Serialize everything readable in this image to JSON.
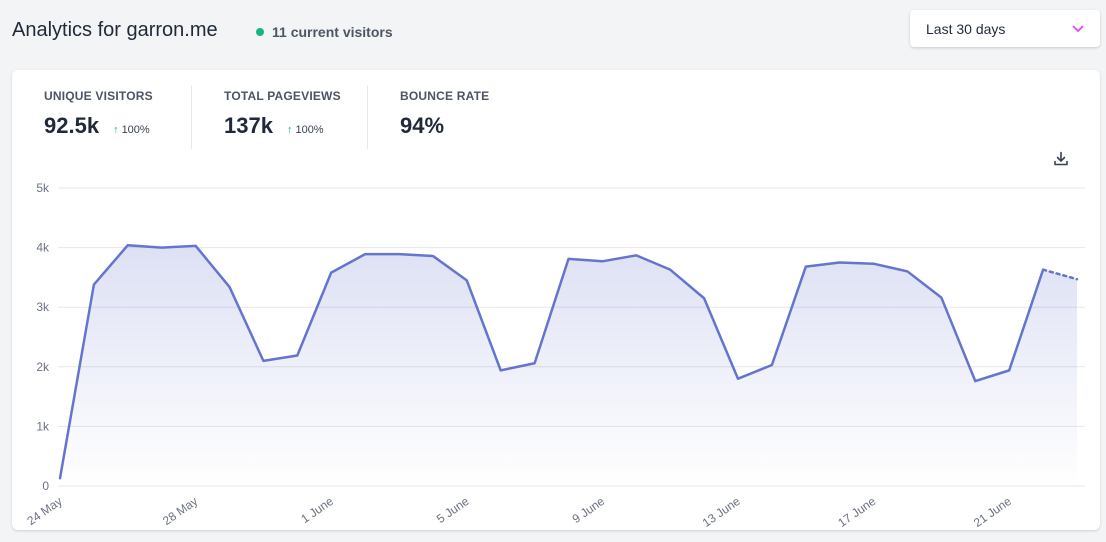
{
  "header": {
    "title": "Analytics for garron.me",
    "current_visitors": "11 current visitors",
    "status_dot_color": "#10b981"
  },
  "range_select": {
    "value": "Last 30 days",
    "icon": "chevron-down-icon",
    "icon_color": "#d946ef"
  },
  "stats": [
    {
      "label": "UNIQUE VISITORS",
      "value": "92.5k",
      "change": "100%",
      "change_icon": "arrow-up-icon"
    },
    {
      "label": "TOTAL PAGEVIEWS",
      "value": "137k",
      "change": "100%",
      "change_icon": "arrow-up-icon"
    },
    {
      "label": "BOUNCE RATE",
      "value": "94%"
    }
  ],
  "download_icon": "download-icon",
  "chart_data": {
    "type": "area",
    "line_color": "#6574cd",
    "ylim": [
      0,
      5000
    ],
    "yticks": [
      0,
      1000,
      2000,
      3000,
      4000,
      5000
    ],
    "ytick_labels": [
      "0",
      "1k",
      "2k",
      "3k",
      "4k",
      "5k"
    ],
    "x_tick_labels": [
      "24 May",
      "28 May",
      "1 June",
      "5 June",
      "9 June",
      "13 June",
      "17 June",
      "21 June"
    ],
    "x_tick_every": 4,
    "x": [
      "24 May",
      "25 May",
      "26 May",
      "27 May",
      "28 May",
      "29 May",
      "30 May",
      "31 May",
      "1 June",
      "2 June",
      "3 June",
      "4 June",
      "5 June",
      "6 June",
      "7 June",
      "8 June",
      "9 June",
      "10 June",
      "11 June",
      "12 June",
      "13 June",
      "14 June",
      "15 June",
      "16 June",
      "17 June",
      "18 June",
      "19 June",
      "20 June",
      "21 June",
      "22 June",
      "23 June"
    ],
    "values": [
      130,
      3380,
      4040,
      4000,
      4030,
      3340,
      2100,
      2190,
      3580,
      3890,
      3890,
      3860,
      3450,
      1940,
      2060,
      3810,
      3770,
      3870,
      3630,
      3150,
      1800,
      2030,
      3680,
      3750,
      3730,
      3600,
      3160,
      1760,
      1940,
      3630,
      3470
    ],
    "dashed_last_segment": true,
    "grid": "horizontal"
  }
}
